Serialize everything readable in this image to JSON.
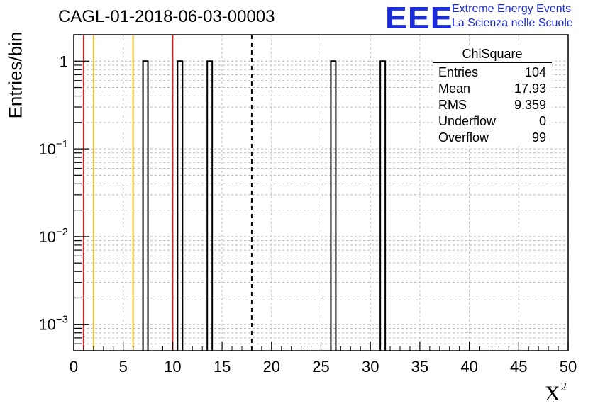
{
  "header": {
    "title": "CAGL-01-2018-06-03-00003",
    "logo_mark": "EEE",
    "logo_line1": "Extreme Energy Events",
    "logo_line2": "La Scienza nelle Scuole"
  },
  "colors": {
    "red_line": "#e01b1b",
    "yellow_line": "#f2c021",
    "logo_blue": "#1a2bd8",
    "grid": "#b9b9b9"
  },
  "stats_box": {
    "title": "ChiSquare",
    "rows": [
      {
        "label": "Entries",
        "value": "104"
      },
      {
        "label": "Mean",
        "value": "17.93"
      },
      {
        "label": "RMS",
        "value": "9.359"
      },
      {
        "label": "Underflow",
        "value": "0"
      },
      {
        "label": "Overflow",
        "value": "99"
      }
    ]
  },
  "chart_data": {
    "type": "bar",
    "xlabel": "X",
    "xlabel_superscript": "2",
    "ylabel": "Entries/bin",
    "xlim": [
      0,
      50
    ],
    "ylim": [
      0.0005,
      2
    ],
    "y_scale": "log",
    "grid": true,
    "x_ticks": [
      "0",
      "5",
      "10",
      "15",
      "20",
      "25",
      "30",
      "35",
      "40",
      "45",
      "50"
    ],
    "y_ticks": [
      {
        "value": 1,
        "base": "1",
        "exp": ""
      },
      {
        "value": 0.1,
        "base": "10",
        "exp": "−1"
      },
      {
        "value": 0.01,
        "base": "10",
        "exp": "−2"
      },
      {
        "value": 0.001,
        "base": "10",
        "exp": "−3"
      }
    ],
    "bin_width": 0.5,
    "bins": [
      {
        "x_low": 7.0,
        "value": 1
      },
      {
        "x_low": 10.5,
        "value": 1
      },
      {
        "x_low": 13.5,
        "value": 1
      },
      {
        "x_low": 26.0,
        "value": 1
      },
      {
        "x_low": 31.0,
        "value": 1
      }
    ],
    "vertical_lines": [
      {
        "x": 1.0,
        "color": "red"
      },
      {
        "x": 2.0,
        "color": "yellow"
      },
      {
        "x": 6.0,
        "color": "yellow"
      },
      {
        "x": 10.0,
        "color": "red"
      },
      {
        "x": 18.0,
        "color": "black",
        "style": "dashed"
      }
    ]
  }
}
